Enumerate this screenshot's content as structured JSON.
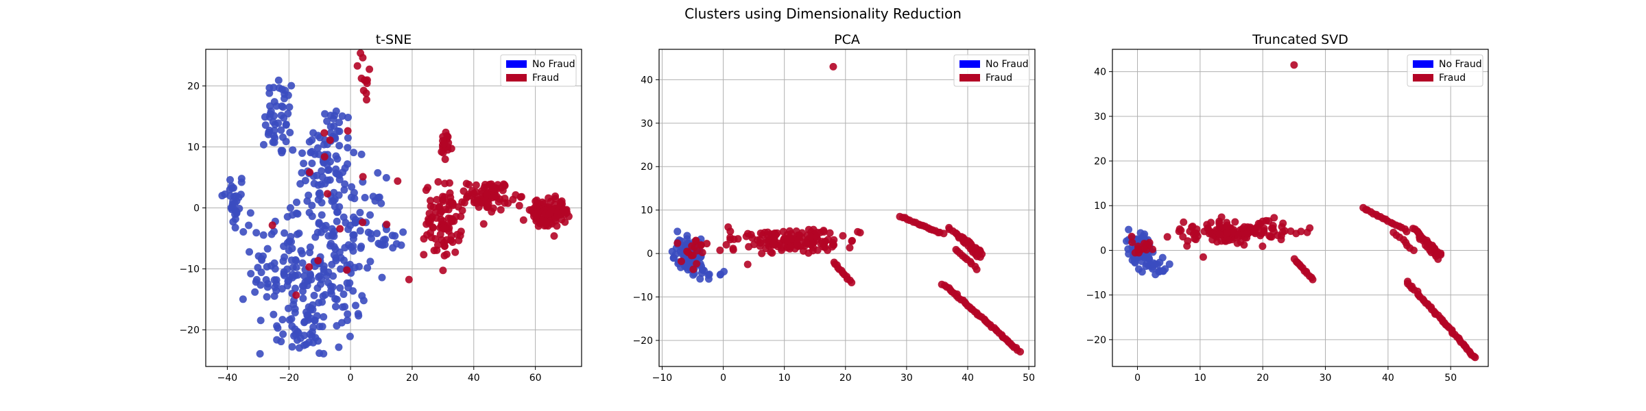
{
  "figure": {
    "suptitle": "Clusters using Dimensionality Reduction"
  },
  "colors": {
    "no_fraud": "#0000ff",
    "fraud": "#b40426",
    "no_fraud_points": "#3b4cc0",
    "fraud_points": "#b40426",
    "grid": "#b0b0b0"
  },
  "legend": {
    "no_fraud": "No Fraud",
    "fraud": "Fraud",
    "placement": "upper-right"
  },
  "chart_data": [
    {
      "type": "scatter",
      "title": "t-SNE",
      "xlim": [
        -47,
        75
      ],
      "ylim": [
        -26,
        26
      ],
      "xticks": [
        -40,
        -20,
        0,
        20,
        40,
        60
      ],
      "yticks": [
        -20,
        -10,
        0,
        10,
        20
      ],
      "grid": true,
      "series": [
        {
          "name": "No Fraud",
          "clusters": [
            {
              "cx": -38,
              "cy": 1,
              "sx": 2,
              "sy": 2.5,
              "n": 30
            },
            {
              "cx": -23,
              "cy": 15,
              "sx": 2.5,
              "sy": 3.5,
              "n": 45
            },
            {
              "cx": -8,
              "cy": 8,
              "sx": 5,
              "sy": 5,
              "n": 90
            },
            {
              "cx": -20,
              "cy": -10,
              "sx": 6,
              "sy": 6,
              "n": 120
            },
            {
              "cx": -5,
              "cy": -10,
              "sx": 5,
              "sy": 6,
              "n": 90
            },
            {
              "cx": -15,
              "cy": -20,
              "sx": 4,
              "sy": 2.5,
              "n": 40
            },
            {
              "cx": 3,
              "cy": -3,
              "sx": 4,
              "sy": 4,
              "n": 40
            },
            {
              "cx": 13,
              "cy": -5,
              "sx": 4,
              "sy": 1,
              "n": 15
            }
          ]
        },
        {
          "name": "Fraud",
          "clusters": [
            {
              "cx": 5,
              "cy": 20,
              "sx": 1.5,
              "sy": 2.5,
              "n": 10
            },
            {
              "cx": 31,
              "cy": 10,
              "sx": 1,
              "sy": 1.2,
              "n": 20
            },
            {
              "cx": 30,
              "cy": -2,
              "sx": 3,
              "sy": 3,
              "n": 90
            },
            {
              "cx": 45,
              "cy": 2,
              "sx": 3.5,
              "sy": 1.2,
              "n": 80
            },
            {
              "cx": 62,
              "cy": -1,
              "sx": 3,
              "sy": 1.2,
              "n": 70
            },
            {
              "cx": 68,
              "cy": -0.5,
              "sx": 1.5,
              "sy": 1,
              "n": 40
            },
            {
              "cx": -8,
              "cy": -4,
              "sx": 12,
              "sy": 12,
              "n": 20
            }
          ]
        }
      ]
    },
    {
      "type": "scatter",
      "title": "PCA",
      "xlim": [
        -10.5,
        51
      ],
      "ylim": [
        -26,
        47
      ],
      "xticks": [
        -10,
        0,
        10,
        20,
        30,
        40,
        50
      ],
      "yticks": [
        -20,
        -10,
        0,
        10,
        20,
        30,
        40
      ],
      "grid": true,
      "series": [
        {
          "name": "No Fraud",
          "clusters": [
            {
              "cx": -5.5,
              "cy": 0,
              "sx": 1,
              "sy": 1.8,
              "n": 120
            },
            {
              "cx": -3,
              "cy": -4,
              "sx": 1.5,
              "sy": 1,
              "n": 15
            }
          ]
        },
        {
          "name": "Fraud",
          "clusters": [
            {
              "cx": 10,
              "cy": 3,
              "sx": 5,
              "sy": 1.3,
              "n": 140
            },
            {
              "cx": -5,
              "cy": 0.5,
              "sx": 0.8,
              "sy": 1.5,
              "n": 15
            }
          ],
          "points": [
            [
              18,
              43
            ],
            [
              0.5,
              2
            ],
            [
              4,
              -2.5
            ],
            [
              11,
              1.5
            ],
            [
              22,
              5
            ],
            [
              14,
              5.5
            ]
          ],
          "lines": [
            {
              "from": [
                18,
                -2
              ],
              "to": [
                21,
                -6.5
              ],
              "n": 12
            },
            {
              "from": [
                29,
                8.5
              ],
              "to": [
                36,
                4.5
              ],
              "n": 18
            },
            {
              "from": [
                37,
                6
              ],
              "to": [
                42,
                -1
              ],
              "n": 18
            },
            {
              "from": [
                39,
                4
              ],
              "to": [
                42.5,
                0
              ],
              "n": 12
            },
            {
              "from": [
                36,
                -7
              ],
              "to": [
                48.5,
                -22.5
              ],
              "n": 45
            },
            {
              "from": [
                38,
                1
              ],
              "to": [
                41.5,
                -3.5
              ],
              "n": 10
            }
          ]
        }
      ]
    },
    {
      "type": "scatter",
      "title": "Truncated SVD",
      "xlim": [
        -4,
        56
      ],
      "ylim": [
        -26,
        45
      ],
      "xticks": [
        0,
        10,
        20,
        30,
        40,
        50
      ],
      "yticks": [
        -20,
        -10,
        0,
        10,
        20,
        30,
        40
      ],
      "grid": true,
      "series": [
        {
          "name": "No Fraud",
          "clusters": [
            {
              "cx": 0.5,
              "cy": 0.5,
              "sx": 0.8,
              "sy": 1.5,
              "n": 130
            },
            {
              "cx": 3,
              "cy": -3,
              "sx": 1.2,
              "sy": 1.2,
              "n": 20
            }
          ]
        },
        {
          "name": "Fraud",
          "clusters": [
            {
              "cx": 15,
              "cy": 4,
              "sx": 5,
              "sy": 1.2,
              "n": 140
            },
            {
              "cx": 1,
              "cy": 1,
              "sx": 0.8,
              "sy": 1.2,
              "n": 15
            }
          ],
          "points": [
            [
              25,
              41.5
            ],
            [
              10.5,
              -1.5
            ],
            [
              27.5,
              5
            ],
            [
              20,
              6.5
            ]
          ],
          "lines": [
            {
              "from": [
                25,
                -2
              ],
              "to": [
                28,
                -6.5
              ],
              "n": 12
            },
            {
              "from": [
                36,
                9.5
              ],
              "to": [
                43,
                4.5
              ],
              "n": 18
            },
            {
              "from": [
                44,
                5
              ],
              "to": [
                48.5,
                -1
              ],
              "n": 18
            },
            {
              "from": [
                45,
                3
              ],
              "to": [
                48,
                -2
              ],
              "n": 10
            },
            {
              "from": [
                43,
                -7
              ],
              "to": [
                54,
                -24
              ],
              "n": 45
            },
            {
              "from": [
                41,
                4
              ],
              "to": [
                44,
                0
              ],
              "n": 8
            }
          ]
        }
      ]
    }
  ]
}
